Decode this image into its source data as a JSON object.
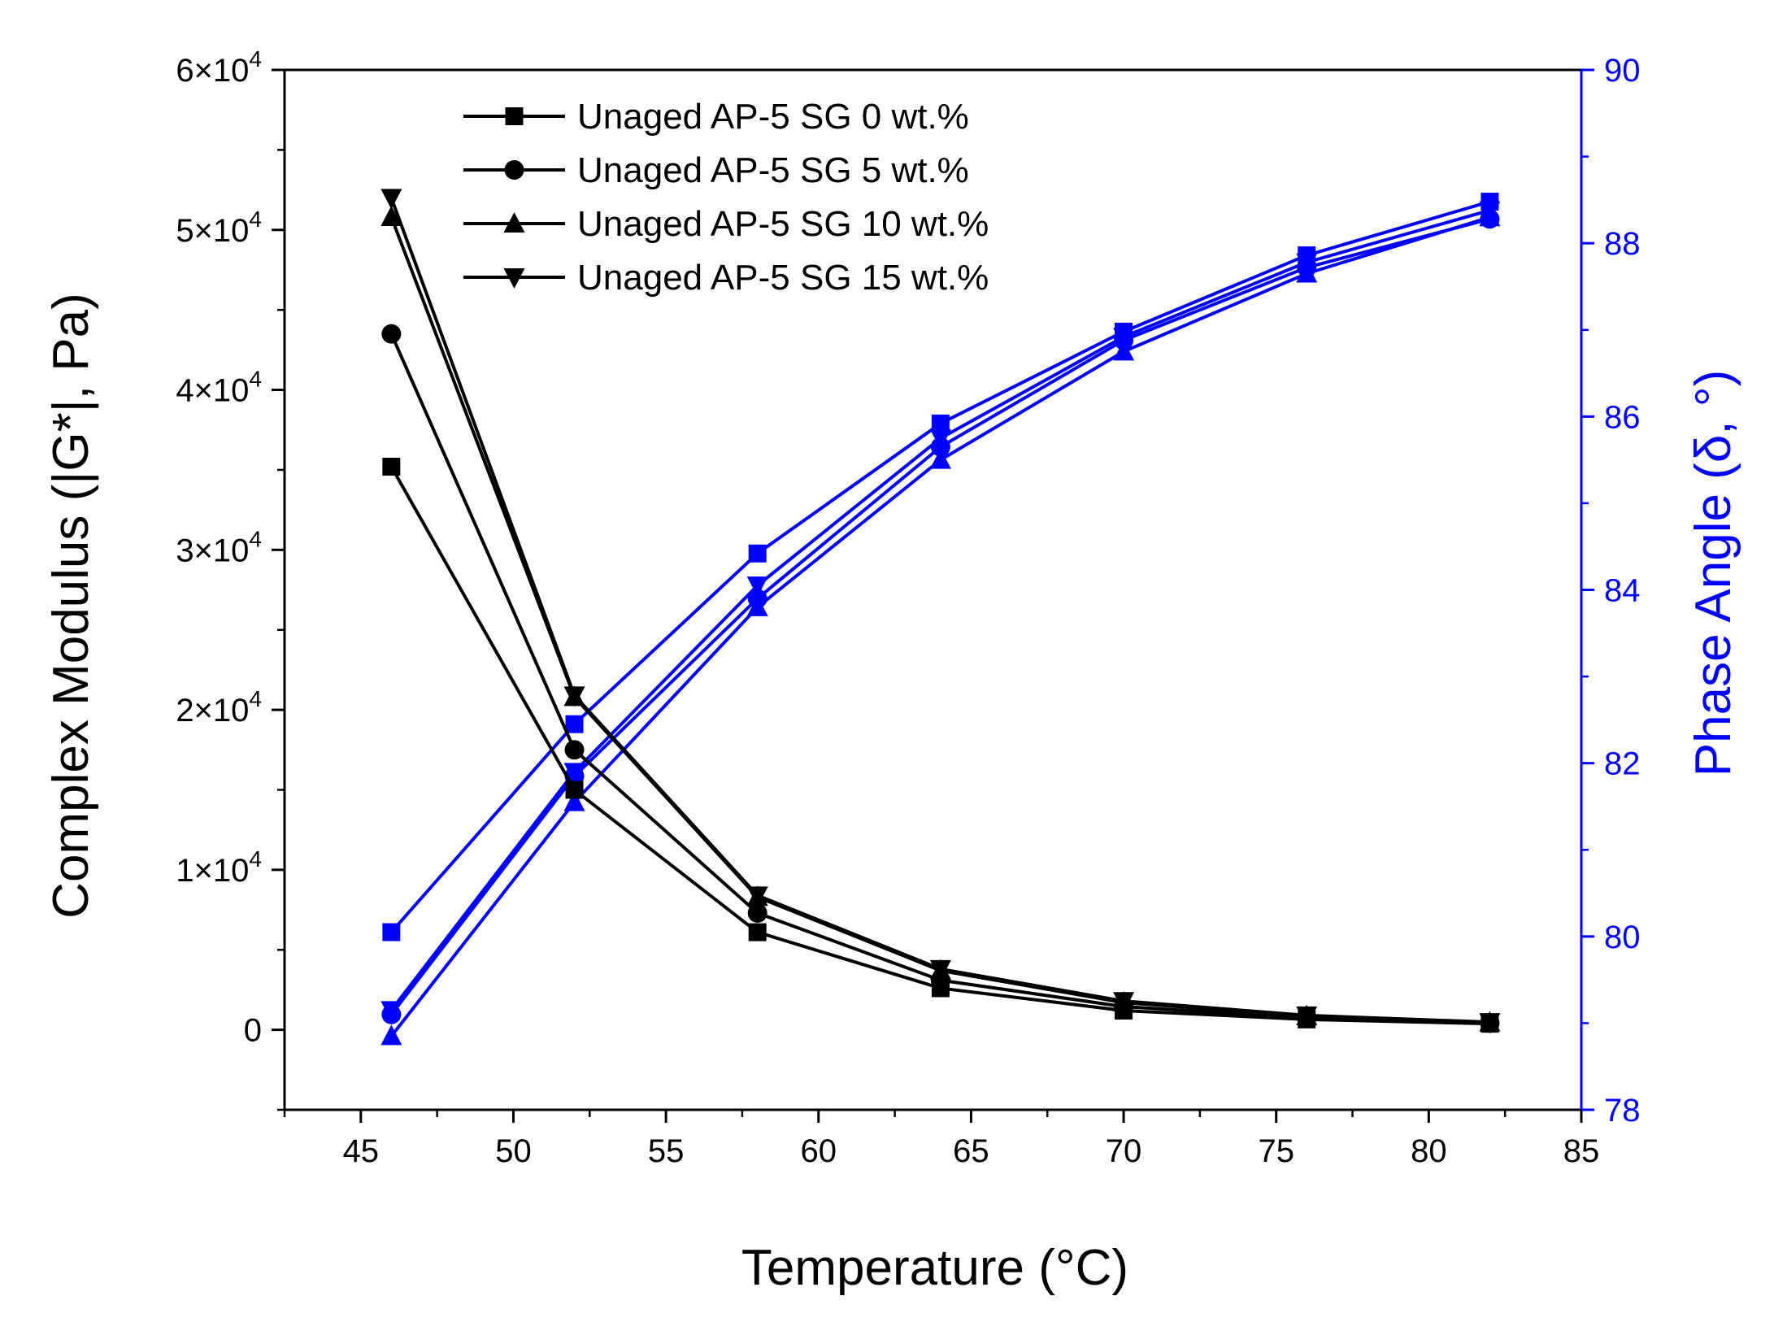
{
  "chart_data": {
    "type": "line",
    "title": "",
    "xlabel": "Temperature (°C)",
    "ylabel_left": "Complex Modulus (|G*|, Pa)",
    "ylabel_right": "Phase Angle (δ, °)",
    "xlim": [
      42.5,
      85
    ],
    "ylim_left": [
      -5000,
      60000
    ],
    "ylim_right": [
      78,
      90
    ],
    "x": [
      46,
      52,
      58,
      64,
      70,
      76,
      82
    ],
    "x_ticks": [
      "45",
      "50",
      "55",
      "60",
      "65",
      "70",
      "75",
      "80",
      "85"
    ],
    "x_tick_values": [
      45,
      50,
      55,
      60,
      65,
      70,
      75,
      80,
      85
    ],
    "y_left_ticks": [
      {
        "value": 0,
        "mantissa": "0",
        "exponent": ""
      },
      {
        "value": 10000,
        "mantissa": "1×10",
        "exponent": "4"
      },
      {
        "value": 20000,
        "mantissa": "2×10",
        "exponent": "4"
      },
      {
        "value": 30000,
        "mantissa": "3×10",
        "exponent": "4"
      },
      {
        "value": 40000,
        "mantissa": "4×10",
        "exponent": "4"
      },
      {
        "value": 50000,
        "mantissa": "5×10",
        "exponent": "4"
      },
      {
        "value": 60000,
        "mantissa": "6×10",
        "exponent": "4"
      }
    ],
    "y_right_ticks": [
      "78",
      "80",
      "82",
      "84",
      "86",
      "88",
      "90"
    ],
    "y_right_tick_values": [
      78,
      80,
      82,
      84,
      86,
      88,
      90
    ],
    "series_modulus": [
      {
        "name": "Unaged AP-5 SG 0 wt.%",
        "marker": "square",
        "values": [
          35200,
          15000,
          6100,
          2600,
          1200,
          650,
          380
        ]
      },
      {
        "name": "Unaged AP-5 SG 5 wt.%",
        "marker": "circle",
        "values": [
          43500,
          17500,
          7300,
          3100,
          1450,
          750,
          420
        ]
      },
      {
        "name": "Unaged AP-5 SG 10 wt.%",
        "marker": "triangle-up",
        "values": [
          50800,
          20800,
          8300,
          3700,
          1700,
          850,
          460
        ]
      },
      {
        "name": "Unaged AP-5 SG 15 wt.%",
        "marker": "triangle-down",
        "values": [
          52000,
          20900,
          8400,
          3800,
          1800,
          900,
          480
        ]
      }
    ],
    "series_phase": [
      {
        "name": "Unaged AP-5 SG 0 wt.% (δ)",
        "marker": "square",
        "values": [
          80.05,
          82.45,
          84.42,
          85.92,
          86.98,
          87.86,
          88.48
        ]
      },
      {
        "name": "Unaged AP-5 SG 5 wt.% (δ)",
        "marker": "circle",
        "values": [
          79.1,
          81.85,
          83.9,
          85.65,
          86.88,
          87.72,
          88.28
        ]
      },
      {
        "name": "Unaged AP-5 SG 10 wt.% (δ)",
        "marker": "triangle-up",
        "values": [
          78.85,
          81.55,
          83.8,
          85.5,
          86.75,
          87.65,
          88.3
        ]
      },
      {
        "name": "Unaged AP-5 SG 15 wt.% (δ)",
        "marker": "triangle-down",
        "values": [
          79.15,
          81.9,
          84.05,
          85.75,
          86.92,
          87.78,
          88.38
        ]
      }
    ],
    "legend": {
      "placement": "top-left",
      "entries": [
        "Unaged AP-5 SG 0 wt.%",
        "Unaged AP-5 SG 5 wt.%",
        "Unaged AP-5 SG 10 wt.%",
        "Unaged AP-5 SG 15 wt.%"
      ]
    },
    "colors": {
      "modulus": "#000000",
      "phase": "#0000ff",
      "axis": "#000000",
      "axis_right": "#0000ff"
    },
    "grid": false
  }
}
